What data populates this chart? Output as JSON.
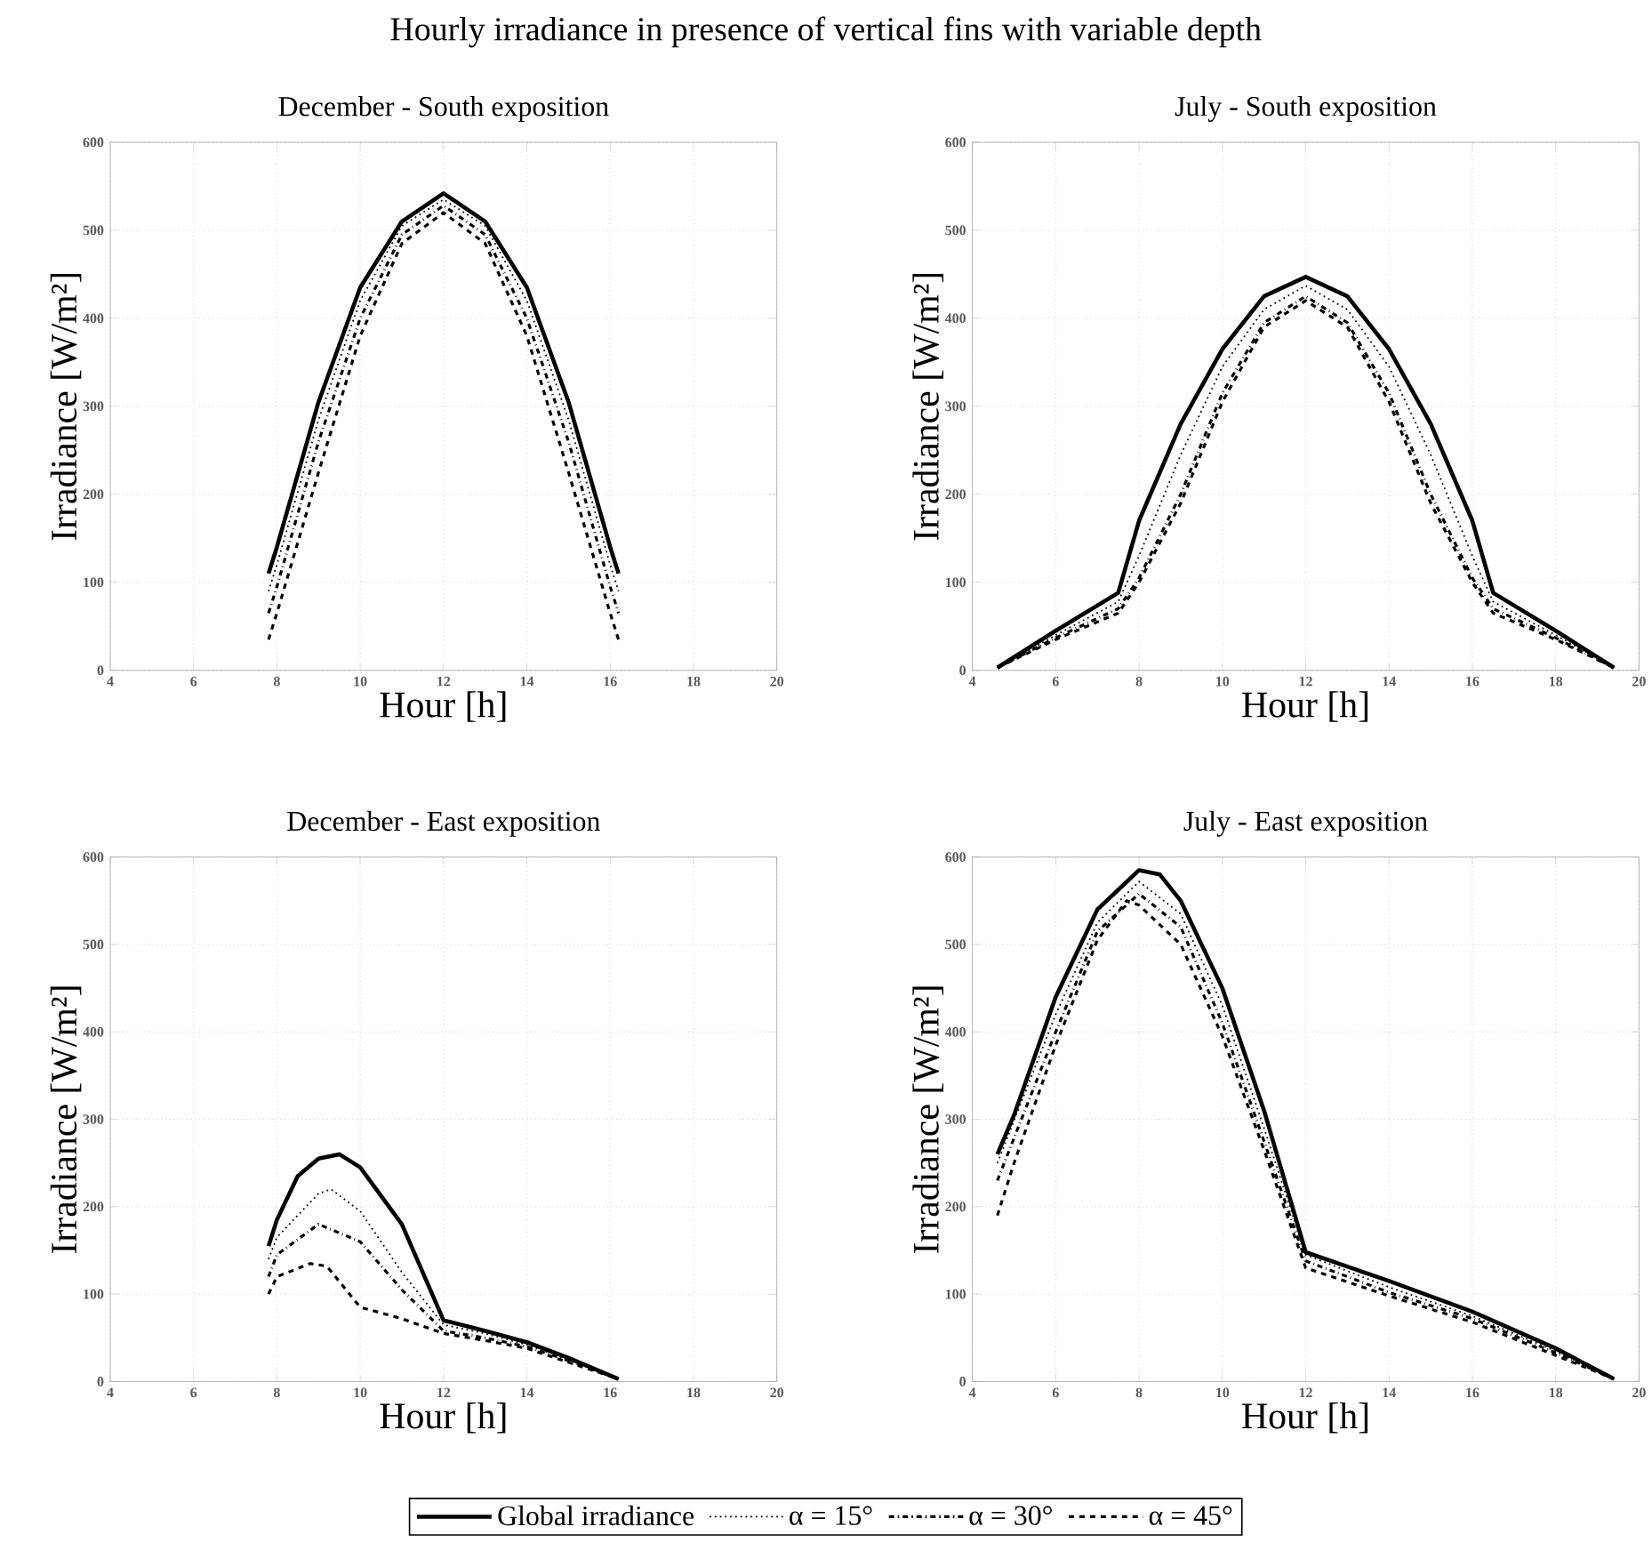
{
  "chart_data": [
    {
      "type": "line",
      "title": "December - South exposition",
      "xlabel": "Hour [h]",
      "ylabel": "Irradiance [W/m²]",
      "annotations": [
        "Hourly irradiance in presence of vertical fins with variable depth"
      ],
      "xlim": [
        4,
        20
      ],
      "ylim": [
        0,
        600
      ],
      "xticks": [
        4,
        6,
        8,
        10,
        12,
        14,
        16,
        18,
        20
      ],
      "yticks": [
        0,
        100,
        200,
        300,
        400,
        500,
        600
      ],
      "grid": true,
      "legend": "bottom",
      "series": [
        {
          "name": "Global irradiance",
          "color": "#000000",
          "line_style": "solid",
          "x": [
            7.8,
            8,
            9,
            10,
            11,
            12,
            13,
            14,
            15,
            16,
            16.2
          ],
          "values": [
            110,
            140,
            305,
            435,
            510,
            542,
            510,
            435,
            305,
            140,
            110
          ]
        },
        {
          "name": "α = 15°",
          "color": "#000000",
          "line_style": "dotted",
          "x": [
            7.8,
            8,
            9,
            10,
            11,
            12,
            13,
            14,
            15,
            16,
            16.2
          ],
          "values": [
            90,
            120,
            285,
            420,
            505,
            535,
            505,
            420,
            285,
            120,
            90
          ]
        },
        {
          "name": "α = 30°",
          "color": "#000000",
          "line_style": "dashdot",
          "x": [
            7.8,
            8,
            9,
            10,
            11,
            12,
            13,
            14,
            15,
            16,
            16.2
          ],
          "values": [
            65,
            95,
            260,
            400,
            495,
            528,
            495,
            400,
            260,
            95,
            65
          ]
        },
        {
          "name": "α = 45°",
          "color": "#000000",
          "line_style": "dashed",
          "x": [
            7.8,
            8,
            9,
            10,
            11,
            12,
            13,
            14,
            15,
            16,
            16.2
          ],
          "values": [
            35,
            65,
            225,
            380,
            485,
            520,
            485,
            380,
            225,
            65,
            35
          ]
        }
      ]
    },
    {
      "type": "line",
      "title": "July - South exposition",
      "xlabel": "Hour [h]",
      "ylabel": "Irradiance [W/m²]",
      "xlim": [
        4,
        20
      ],
      "ylim": [
        0,
        600
      ],
      "xticks": [
        4,
        6,
        8,
        10,
        12,
        14,
        16,
        18,
        20
      ],
      "yticks": [
        0,
        100,
        200,
        300,
        400,
        500,
        600
      ],
      "grid": true,
      "series": [
        {
          "color": "#000000",
          "line_style": "solid",
          "x": [
            4.6,
            6,
            7.5,
            8,
            9,
            10,
            11,
            12,
            13,
            14,
            15,
            16,
            16.5,
            18,
            19.4
          ],
          "values": [
            3,
            45,
            88,
            170,
            280,
            365,
            425,
            447,
            425,
            365,
            280,
            170,
            88,
            45,
            3
          ]
        },
        {
          "color": "#000000",
          "line_style": "dotted",
          "x": [
            4.6,
            6,
            7.5,
            8,
            9,
            10,
            11,
            12,
            13,
            14,
            15,
            16,
            16.5,
            18,
            19.4
          ],
          "values": [
            3,
            40,
            78,
            130,
            245,
            345,
            410,
            437,
            410,
            345,
            245,
            130,
            78,
            40,
            3
          ]
        },
        {
          "color": "#000000",
          "line_style": "dashdot",
          "x": [
            4.6,
            6,
            7.5,
            8,
            9,
            10,
            11,
            12,
            13,
            14,
            15,
            16,
            16.5,
            18,
            19.4
          ],
          "values": [
            3,
            37,
            70,
            105,
            200,
            315,
            395,
            425,
            395,
            315,
            200,
            105,
            70,
            37,
            3
          ]
        },
        {
          "color": "#000000",
          "line_style": "dashed",
          "x": [
            4.6,
            6,
            7.5,
            8,
            9,
            10,
            11,
            12,
            13,
            14,
            15,
            16,
            16.5,
            18,
            19.4
          ],
          "values": [
            3,
            35,
            65,
            100,
            190,
            305,
            390,
            420,
            390,
            305,
            190,
            100,
            65,
            35,
            3
          ]
        }
      ]
    },
    {
      "type": "line",
      "title": "December - East exposition",
      "xlabel": "Hour [h]",
      "ylabel": "Irradiance [W/m²]",
      "xlim": [
        4,
        20
      ],
      "ylim": [
        0,
        600
      ],
      "xticks": [
        4,
        6,
        8,
        10,
        12,
        14,
        16,
        18,
        20
      ],
      "yticks": [
        0,
        100,
        200,
        300,
        400,
        500,
        600
      ],
      "grid": true,
      "series": [
        {
          "color": "#000000",
          "line_style": "solid",
          "x": [
            7.8,
            8,
            8.5,
            9,
            9.5,
            10,
            11,
            12,
            13,
            14,
            15,
            16.2
          ],
          "values": [
            155,
            185,
            235,
            255,
            260,
            245,
            180,
            70,
            58,
            45,
            27,
            3
          ]
        },
        {
          "color": "#000000",
          "line_style": "dotted",
          "x": [
            7.8,
            8,
            9,
            9.3,
            10,
            11,
            12,
            13,
            14,
            15,
            16.2
          ],
          "values": [
            140,
            165,
            215,
            220,
            195,
            125,
            65,
            55,
            42,
            25,
            3
          ]
        },
        {
          "color": "#000000",
          "line_style": "dashdot",
          "x": [
            7.8,
            8,
            9,
            10,
            11,
            12,
            13,
            14,
            15,
            16.2
          ],
          "values": [
            120,
            145,
            180,
            160,
            105,
            58,
            50,
            40,
            24,
            3
          ]
        },
        {
          "color": "#000000",
          "line_style": "dashed",
          "x": [
            7.8,
            8,
            8.8,
            9.2,
            10,
            11,
            12,
            13,
            14,
            15,
            16.2
          ],
          "values": [
            100,
            120,
            135,
            132,
            85,
            72,
            55,
            47,
            38,
            22,
            3
          ]
        }
      ]
    },
    {
      "type": "line",
      "title": "July - East exposition",
      "xlabel": "Hour [h]",
      "ylabel": "Irradiance [W/m²]",
      "xlim": [
        4,
        20
      ],
      "ylim": [
        0,
        600
      ],
      "xticks": [
        4,
        6,
        8,
        10,
        12,
        14,
        16,
        18,
        20
      ],
      "yticks": [
        0,
        100,
        200,
        300,
        400,
        500,
        600
      ],
      "grid": true,
      "series": [
        {
          "color": "#000000",
          "line_style": "solid",
          "x": [
            4.6,
            5,
            6,
            7,
            8,
            8.5,
            9,
            10,
            11,
            12,
            14,
            16,
            18,
            19.4
          ],
          "values": [
            260,
            305,
            440,
            540,
            585,
            580,
            550,
            450,
            310,
            148,
            115,
            80,
            38,
            3
          ]
        },
        {
          "color": "#000000",
          "line_style": "dotted",
          "x": [
            4.6,
            6,
            7,
            8,
            9,
            10,
            11,
            12,
            14,
            16,
            18,
            19.4
          ],
          "values": [
            250,
            420,
            525,
            572,
            535,
            430,
            290,
            145,
            108,
            75,
            35,
            3
          ]
        },
        {
          "color": "#000000",
          "line_style": "dashdot",
          "x": [
            4.6,
            6,
            7,
            8,
            9,
            10,
            11,
            12,
            14,
            16,
            18,
            19.4
          ],
          "values": [
            230,
            400,
            515,
            558,
            520,
            410,
            275,
            138,
            102,
            72,
            33,
            3
          ]
        },
        {
          "color": "#000000",
          "line_style": "dashed",
          "x": [
            4.6,
            5,
            6,
            7,
            7.7,
            8,
            9,
            10,
            11,
            12,
            14,
            16,
            18,
            19.4
          ],
          "values": [
            190,
            250,
            385,
            505,
            550,
            545,
            500,
            395,
            265,
            130,
            98,
            68,
            30,
            3
          ]
        }
      ]
    }
  ]
}
